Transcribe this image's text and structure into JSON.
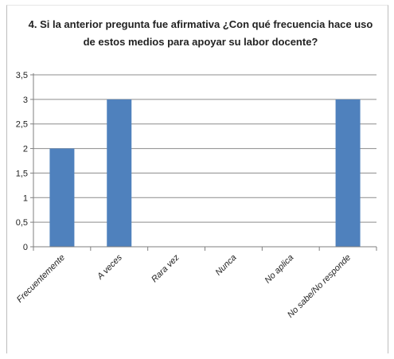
{
  "chart_data": {
    "type": "bar",
    "title": "4. Si la anterior pregunta  fue afirmativa ¿Con qué frecuencia hace uso de estos medios para apoyar su labor docente?",
    "categories": [
      "Frecuentemente",
      "A veces",
      "Rara vez",
      "Nunca",
      "No aplica",
      "No sabe/No responde"
    ],
    "values": [
      2,
      3,
      0,
      0,
      0,
      3
    ],
    "yticks": [
      "0",
      "0,5",
      "1",
      "1,5",
      "2",
      "2,5",
      "3",
      "3,5"
    ],
    "ylim": [
      0,
      3.5
    ],
    "xlabel": "",
    "ylabel": "",
    "grid": true,
    "legend": "none",
    "bar_color": "#4f81bd",
    "grid_color": "#8c8c8c"
  }
}
